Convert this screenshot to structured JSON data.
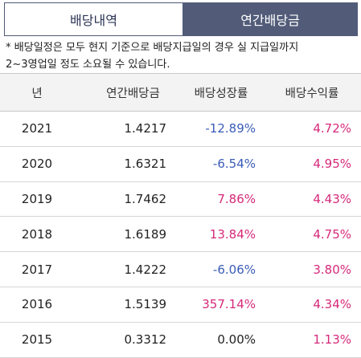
{
  "tabs": [
    {
      "label": "배당내역",
      "active": false
    },
    {
      "label": "연간배당금",
      "active": true
    }
  ],
  "notice": {
    "line1": "* 배당일정은 모두 현지 기준으로 배당지급일의 경우 실 지급일까지",
    "line2": "2~3영업일 정도 소요될 수 있습니다."
  },
  "table": {
    "headers": [
      "년",
      "연간배당금",
      "배당성장률",
      "배당수익률"
    ],
    "rows": [
      {
        "year": "2021",
        "amount": "1.4217",
        "growth": "-12.89%",
        "yield": "4.72%"
      },
      {
        "year": "2020",
        "amount": "1.6321",
        "growth": "-6.54%",
        "yield": "4.95%"
      },
      {
        "year": "2019",
        "amount": "1.7462",
        "growth": "7.86%",
        "yield": "4.43%"
      },
      {
        "year": "2018",
        "amount": "1.6189",
        "growth": "13.84%",
        "yield": "4.75%"
      },
      {
        "year": "2017",
        "amount": "1.4222",
        "growth": "-6.06%",
        "yield": "3.80%"
      },
      {
        "year": "2016",
        "amount": "1.5139",
        "growth": "357.14%",
        "yield": "4.34%"
      },
      {
        "year": "2015",
        "amount": "0.3312",
        "growth": "0.00%",
        "yield": "1.13%"
      }
    ]
  },
  "colors": {
    "negative": "#3a5cb8",
    "positive": "#d6297a",
    "neutral": "#222222",
    "tab_active_bg": "#525c79"
  }
}
